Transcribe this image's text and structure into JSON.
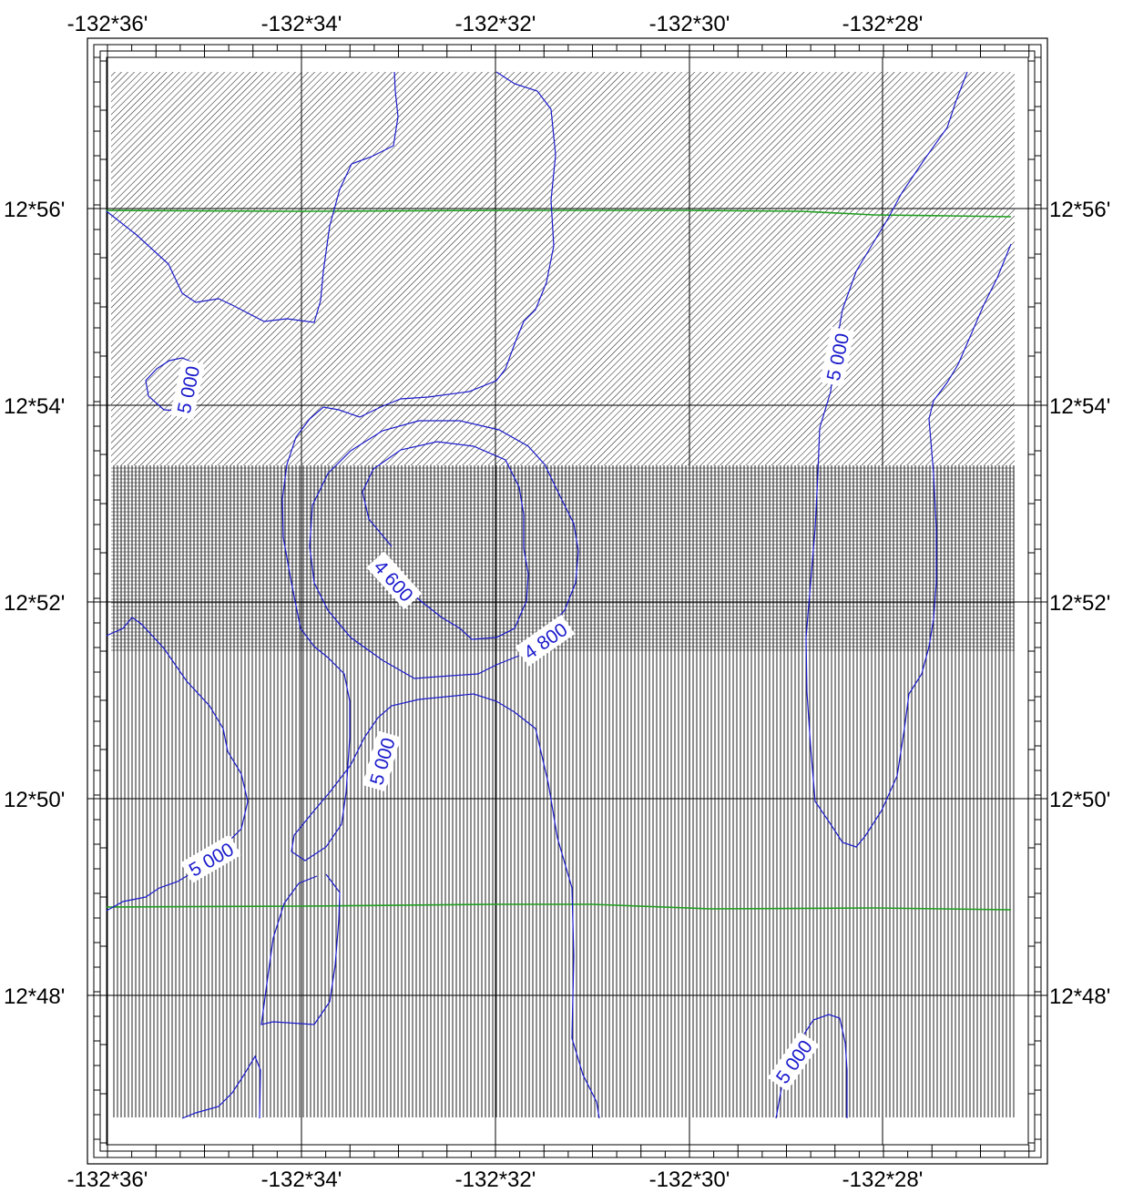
{
  "colors": {
    "contour": "#1a1acc",
    "track": "#1f9e1f",
    "grid": "#000000",
    "hatch": "#222222",
    "label_bg": "#ffffff"
  },
  "longitude_labels": [
    "-132*36'",
    "-132*34'",
    "-132*32'",
    "-132*30'",
    "-132*28'"
  ],
  "latitude_labels": [
    "12*56'",
    "12*54'",
    "12*52'",
    "12*50'",
    "12*48'"
  ],
  "contour_labels": [
    {
      "text": "5 000"
    },
    {
      "text": "5 000"
    },
    {
      "text": "4 600"
    },
    {
      "text": "4 800"
    },
    {
      "text": "5 000"
    },
    {
      "text": "5 000"
    },
    {
      "text": "5 000"
    }
  ],
  "zones": [
    {
      "pattern": "diagonal-hatch"
    },
    {
      "pattern": "dense-crosshatch"
    },
    {
      "pattern": "vertical-hatch"
    }
  ]
}
